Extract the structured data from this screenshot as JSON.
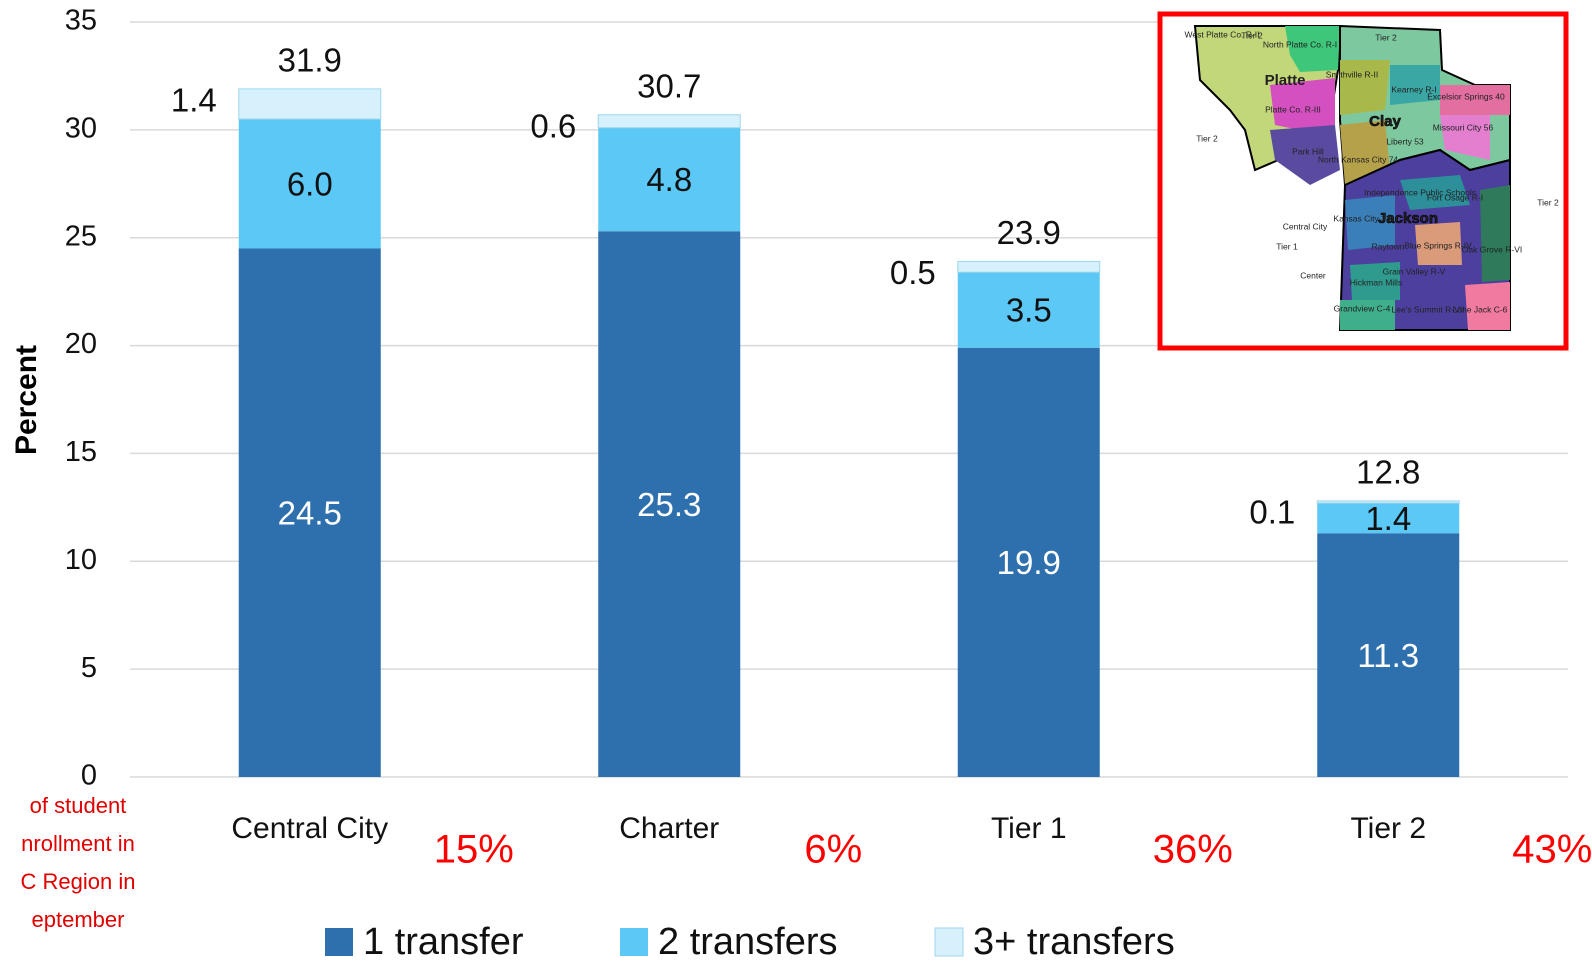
{
  "chart_data": {
    "type": "stacked_bar",
    "y_label": "Percent",
    "categories": [
      "Central City",
      "Charter",
      "Tier 1",
      "Tier 2"
    ],
    "series": [
      {
        "name": "1 transfer",
        "color": "#2e6fad",
        "label_color": "#ffffff",
        "values": [
          24.5,
          25.3,
          19.9,
          11.3
        ]
      },
      {
        "name": "2 transfers",
        "color": "#5bc8f5",
        "label_color": "#111111",
        "values": [
          6.0,
          4.8,
          3.5,
          1.4
        ],
        "value_labels": [
          "6.0",
          "4.8",
          "3.5",
          "1.4"
        ]
      },
      {
        "name": "3+ transfers",
        "color": "#d6f1fb",
        "label_color": "#111111",
        "values": [
          1.4,
          0.6,
          0.5,
          0.1
        ]
      }
    ],
    "totals": [
      31.9,
      30.7,
      23.9,
      12.8
    ],
    "enrollment_share": {
      "values": [
        15,
        6,
        36,
        43
      ],
      "value_labels": [
        "15%",
        "6%",
        "36%",
        "43%"
      ],
      "color": "#ff0000"
    },
    "note_lines": [
      "of student",
      "nrollment in",
      "C Region in",
      "eptember"
    ],
    "ylim": [
      0,
      35
    ],
    "yticks": [
      0,
      5,
      10,
      15,
      20,
      25,
      30,
      35
    ],
    "grid": true,
    "legend": "bottom"
  },
  "inset_map": {
    "labels": [
      "West Platte Co. R-II",
      "North Platte Co. R-I",
      "Platte",
      "Smithville R-II",
      "Kearney R-I",
      "Excelsior Springs 40",
      "Platte Co. R-III",
      "Clay",
      "Liberty 53",
      "Missouri City 56",
      "Park Hill",
      "North Kansas City 74",
      "Independence Public Schools",
      "Fort Osage R-I",
      "Jackson",
      "Kansas City 33",
      "Blue Springs R-IV",
      "Raytown",
      "Grain Valley R-V",
      "Oak Grove R-VI",
      "Hickman Mills",
      "Grandview C-4",
      "Lee's Summit R-VII",
      "Lone Jack C-6",
      "Center",
      "Central City",
      "Tier 1",
      "Tier 2",
      "Tier 2",
      "Tier 2",
      "Tier 2"
    ]
  }
}
